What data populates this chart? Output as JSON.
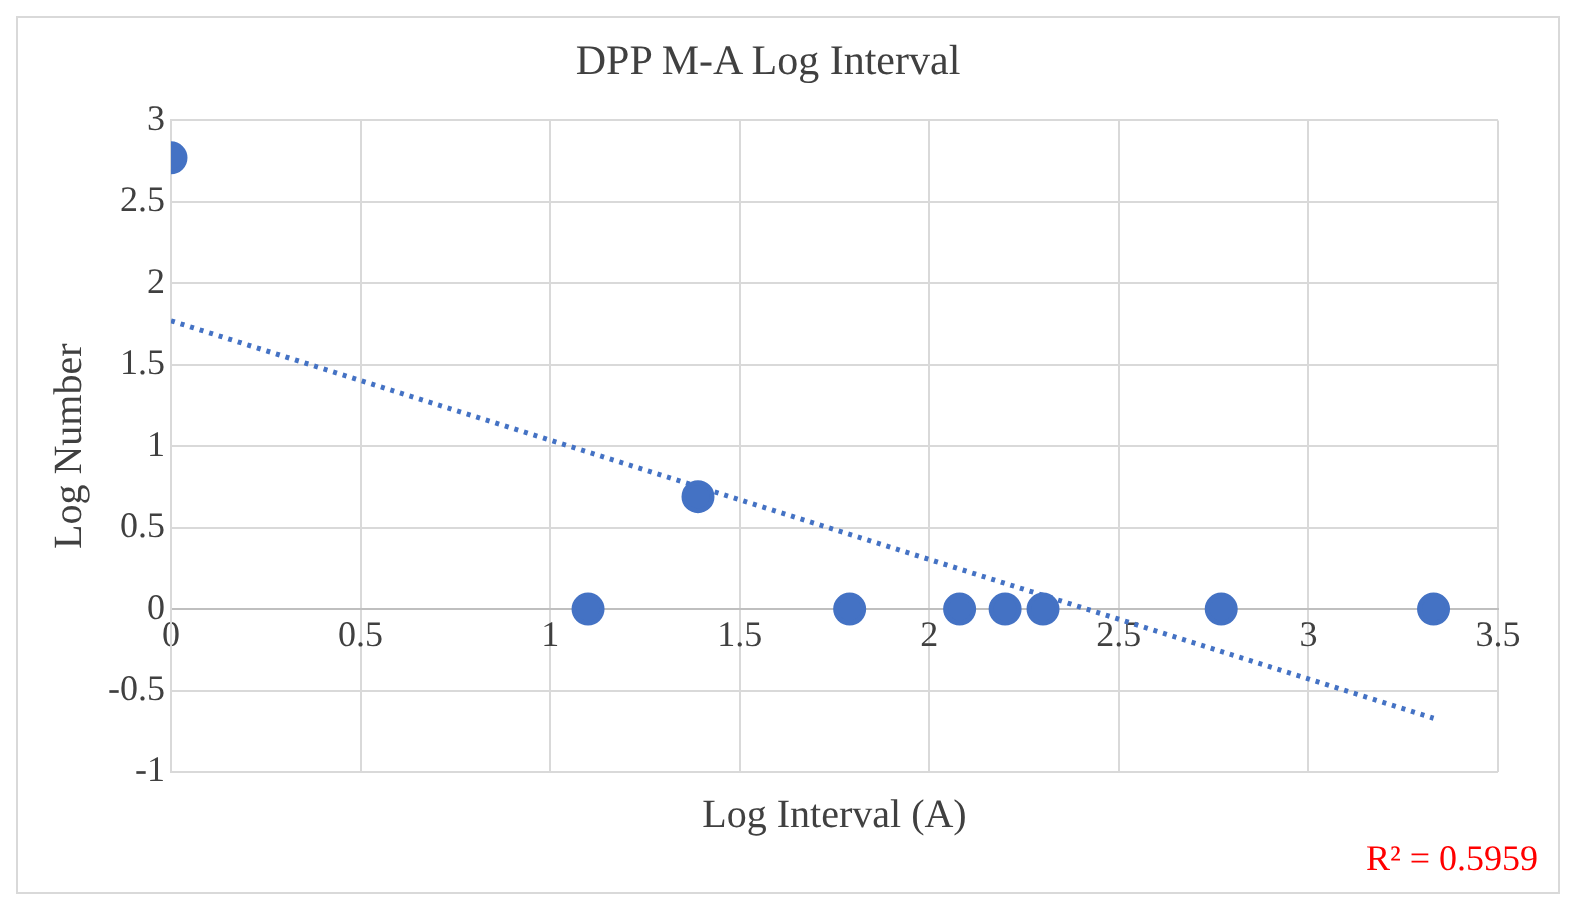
{
  "chart_data": {
    "type": "scatter",
    "title": "DPP M-A Log Interval",
    "xlabel": "Log Interval (A)",
    "ylabel": "Log Number",
    "series": [
      {
        "color": "#4472c4",
        "x": [
          0,
          1.1,
          1.39,
          1.79,
          2.08,
          2.2,
          2.3,
          2.77,
          3.33
        ],
        "values": [
          2.77,
          0,
          0.69,
          0,
          0,
          0,
          0,
          0,
          0
        ],
        "marker": "circle"
      },
      {
        "type": "line",
        "color": "#4472c4",
        "x": [
          0,
          3.33
        ],
        "values": [
          1.77,
          -0.67
        ],
        "line_style": "dotted",
        "marker": "none"
      }
    ],
    "xlim": [
      0,
      3.5
    ],
    "xticks": [
      0,
      0.5,
      1,
      1.5,
      2,
      2.5,
      3,
      3.5
    ],
    "ylim": [
      -1,
      3
    ],
    "yticks": [
      -1,
      -0.5,
      0,
      0.5,
      1,
      1.5,
      2,
      2.5,
      3
    ],
    "grid": true,
    "legend": false,
    "annotations": [
      "R² = 0.5959"
    ]
  }
}
